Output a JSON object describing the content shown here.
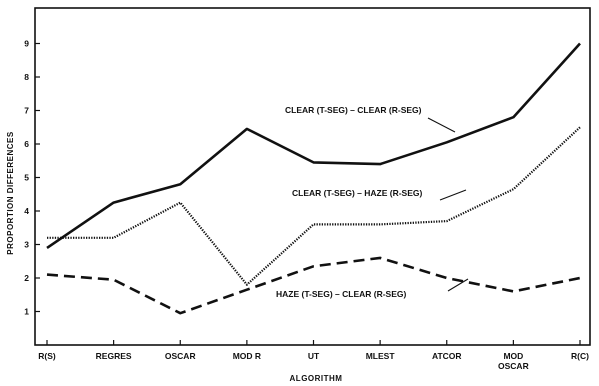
{
  "chart_data": {
    "type": "line",
    "title": "",
    "xlabel": "ALGORITHM",
    "ylabel": "PROPORTION DIFFERENCES",
    "ylim": [
      0,
      10
    ],
    "yticks": [
      "1",
      "2",
      "3",
      "4",
      "5",
      "6",
      "7",
      "8",
      "9"
    ],
    "grid": false,
    "categories": [
      [
        "R(S)"
      ],
      [
        "REGRES"
      ],
      [
        "OSCAR"
      ],
      [
        "MOD R"
      ],
      [
        "UT"
      ],
      [
        "MLEST"
      ],
      [
        "ATCOR"
      ],
      [
        "MOD",
        "OSCAR"
      ],
      [
        "R(C)"
      ]
    ],
    "series": [
      {
        "name": "CLEAR (T-SEG) – CLEAR (R-SEG)",
        "style": "solid",
        "values": [
          2.9,
          4.25,
          4.8,
          6.45,
          5.45,
          5.4,
          6.05,
          6.8,
          9.0
        ]
      },
      {
        "name": "CLEAR (T-SEG) – HAZE (R-SEG)",
        "style": "dotted",
        "values": [
          3.2,
          3.2,
          4.25,
          1.8,
          3.6,
          3.6,
          3.7,
          4.65,
          6.5
        ]
      },
      {
        "name": "HAZE (T-SEG) – CLEAR (R-SEG)",
        "style": "dashed",
        "values": [
          2.1,
          1.95,
          0.95,
          1.65,
          2.35,
          2.6,
          2.0,
          1.6,
          2.0
        ]
      }
    ]
  }
}
